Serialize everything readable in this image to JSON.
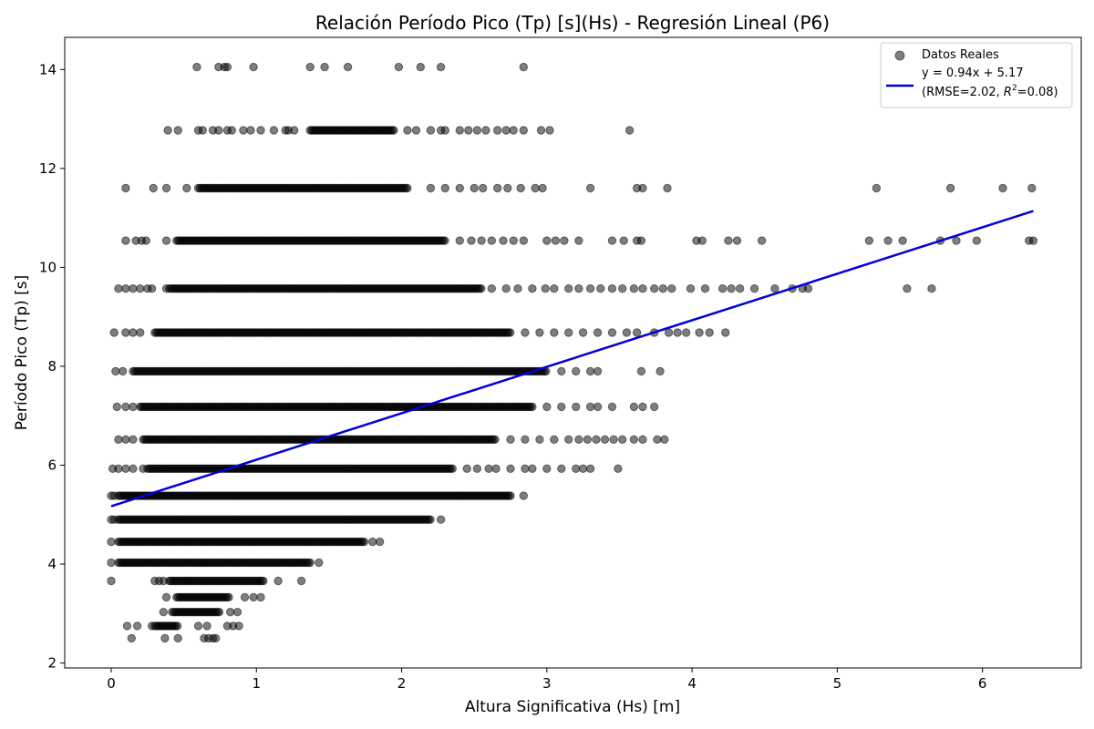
{
  "chart_data": {
    "type": "scatter",
    "title": "Relación Período Pico (Tp) [s](Hs) - Regresión Lineal (P6)",
    "xlabel": "Altura Significativa (Hs) [m]",
    "ylabel": "Período Pico (Tp) [s]",
    "xlim": [
      -0.32,
      6.68
    ],
    "ylim": [
      1.9,
      14.65
    ],
    "xticks": [
      0,
      1,
      2,
      3,
      4,
      5,
      6
    ],
    "yticks": [
      2,
      4,
      6,
      8,
      10,
      12,
      14
    ],
    "grid": false,
    "legend_position": "top-right",
    "point_color": "#000000",
    "point_opacity": 0.5,
    "line_color": "#0000dd",
    "series": [
      {
        "name": "Datos Reales",
        "kind": "scatter",
        "bands": [
          {
            "y": 14.05,
            "x_min": 0.59,
            "x_max": 2.84,
            "dense_min": null,
            "dense_max": null,
            "extra_x": [
              0.59,
              0.74,
              0.78,
              0.8,
              0.98,
              1.37,
              1.47,
              1.63,
              1.98,
              2.13,
              2.27,
              2.84
            ]
          },
          {
            "y": 12.77,
            "x_min": 0.39,
            "x_max": 3.57,
            "dense_min": 1.37,
            "dense_max": 1.95,
            "extra_x": [
              0.39,
              0.46,
              0.6,
              0.63,
              0.7,
              0.74,
              0.8,
              0.83,
              0.91,
              0.96,
              1.03,
              1.12,
              1.2,
              1.22,
              1.26,
              2.04,
              2.1,
              2.2,
              2.27,
              2.3,
              2.4,
              2.46,
              2.52,
              2.58,
              2.66,
              2.72,
              2.77,
              2.84,
              2.96,
              3.02,
              3.57
            ]
          },
          {
            "y": 11.6,
            "x_min": 0.1,
            "x_max": 6.34,
            "dense_min": 0.6,
            "dense_max": 2.05,
            "extra_x": [
              0.1,
              0.29,
              0.38,
              0.52,
              2.2,
              2.3,
              2.4,
              2.5,
              2.56,
              2.66,
              2.73,
              2.82,
              2.92,
              2.97,
              3.3,
              3.62,
              3.66,
              3.83,
              5.27,
              5.78,
              6.14,
              6.34
            ]
          },
          {
            "y": 10.54,
            "x_min": 0.1,
            "x_max": 6.35,
            "dense_min": 0.45,
            "dense_max": 2.3,
            "extra_x": [
              0.1,
              0.17,
              0.21,
              0.24,
              0.38,
              2.4,
              2.48,
              2.55,
              2.62,
              2.7,
              2.77,
              2.84,
              3.0,
              3.06,
              3.12,
              3.22,
              3.45,
              3.53,
              3.62,
              3.65,
              4.03,
              4.07,
              4.25,
              4.31,
              4.48,
              5.22,
              5.35,
              5.45,
              5.71,
              5.82,
              5.96,
              6.32,
              6.35
            ]
          },
          {
            "y": 9.57,
            "x_min": 0.05,
            "x_max": 5.65,
            "dense_min": 0.4,
            "dense_max": 2.55,
            "extra_x": [
              0.05,
              0.1,
              0.15,
              0.2,
              0.25,
              0.28,
              0.38,
              2.62,
              2.72,
              2.8,
              2.9,
              2.99,
              3.05,
              3.15,
              3.22,
              3.3,
              3.37,
              3.45,
              3.52,
              3.6,
              3.66,
              3.74,
              3.8,
              3.86,
              3.99,
              4.09,
              4.21,
              4.27,
              4.33,
              4.43,
              4.57,
              4.69,
              4.76,
              4.8,
              5.48,
              5.65
            ]
          },
          {
            "y": 8.68,
            "x_min": 0.02,
            "x_max": 4.23,
            "dense_min": 0.3,
            "dense_max": 2.75,
            "extra_x": [
              0.02,
              0.1,
              0.15,
              0.2,
              2.85,
              2.95,
              3.05,
              3.15,
              3.25,
              3.35,
              3.45,
              3.55,
              3.62,
              3.74,
              3.84,
              3.9,
              3.96,
              4.05,
              4.12,
              4.23
            ]
          },
          {
            "y": 7.9,
            "x_min": 0.03,
            "x_max": 3.78,
            "dense_min": 0.15,
            "dense_max": 3.0,
            "extra_x": [
              0.03,
              0.08,
              3.1,
              3.2,
              3.3,
              3.35,
              3.65,
              3.78
            ]
          },
          {
            "y": 7.18,
            "x_min": 0.04,
            "x_max": 3.74,
            "dense_min": 0.2,
            "dense_max": 2.9,
            "extra_x": [
              0.04,
              0.1,
              0.15,
              3.0,
              3.1,
              3.2,
              3.3,
              3.35,
              3.45,
              3.6,
              3.66,
              3.74
            ]
          },
          {
            "y": 6.52,
            "x_min": 0.05,
            "x_max": 3.81,
            "dense_min": 0.22,
            "dense_max": 2.65,
            "extra_x": [
              0.05,
              0.1,
              0.15,
              2.75,
              2.85,
              2.95,
              3.05,
              3.15,
              3.22,
              3.28,
              3.34,
              3.4,
              3.46,
              3.52,
              3.6,
              3.66,
              3.76,
              3.81
            ]
          },
          {
            "y": 5.93,
            "x_min": 0.01,
            "x_max": 3.49,
            "dense_min": 0.25,
            "dense_max": 2.35,
            "extra_x": [
              0.01,
              0.05,
              0.1,
              0.15,
              0.22,
              2.45,
              2.52,
              2.6,
              2.65,
              2.75,
              2.85,
              2.9,
              3.0,
              3.1,
              3.2,
              3.25,
              3.3,
              3.49
            ]
          },
          {
            "y": 5.38,
            "x_min": 0.0,
            "x_max": 2.84,
            "dense_min": 0.05,
            "dense_max": 2.75,
            "extra_x": [
              0.0,
              0.02,
              2.84
            ]
          },
          {
            "y": 4.9,
            "x_min": 0.0,
            "x_max": 2.27,
            "dense_min": 0.05,
            "dense_max": 2.2,
            "extra_x": [
              0.0,
              0.02,
              2.27
            ]
          },
          {
            "y": 4.45,
            "x_min": 0.0,
            "x_max": 1.85,
            "dense_min": 0.05,
            "dense_max": 1.75,
            "extra_x": [
              0.0,
              1.8,
              1.85
            ]
          },
          {
            "y": 4.03,
            "x_min": 0.0,
            "x_max": 1.43,
            "dense_min": 0.05,
            "dense_max": 1.38,
            "extra_x": [
              0.0,
              1.43
            ]
          },
          {
            "y": 3.66,
            "x_min": 0.0,
            "x_max": 1.31,
            "dense_min": 0.4,
            "dense_max": 1.05,
            "extra_x": [
              0.0,
              0.3,
              0.33,
              0.36,
              1.15,
              1.31
            ]
          },
          {
            "y": 3.33,
            "x_min": 0.38,
            "x_max": 1.03,
            "dense_min": 0.45,
            "dense_max": 0.82,
            "extra_x": [
              0.38,
              0.92,
              0.98,
              1.03
            ]
          },
          {
            "y": 3.03,
            "x_min": 0.36,
            "x_max": 0.87,
            "dense_min": 0.42,
            "dense_max": 0.75,
            "extra_x": [
              0.36,
              0.82,
              0.87
            ]
          },
          {
            "y": 2.75,
            "x_min": 0.11,
            "x_max": 0.88,
            "dense_min": 0.3,
            "dense_max": 0.46,
            "extra_x": [
              0.11,
              0.18,
              0.28,
              0.6,
              0.66,
              0.8,
              0.84,
              0.88
            ]
          },
          {
            "y": 2.5,
            "x_min": 0.14,
            "x_max": 0.72,
            "dense_min": null,
            "dense_max": null,
            "extra_x": [
              0.14,
              0.37,
              0.46,
              0.64,
              0.67,
              0.7,
              0.72
            ]
          }
        ]
      },
      {
        "name": "y = 0.94x + 5.17",
        "subtitle_prefix": "(RMSE=2.02, ",
        "r2_symbol": "R",
        "r2_exp": "2",
        "r2_suffix": "=0.08)",
        "kind": "line",
        "slope": 0.94,
        "intercept": 5.17,
        "x_range": [
          0.0,
          6.35
        ]
      }
    ]
  }
}
